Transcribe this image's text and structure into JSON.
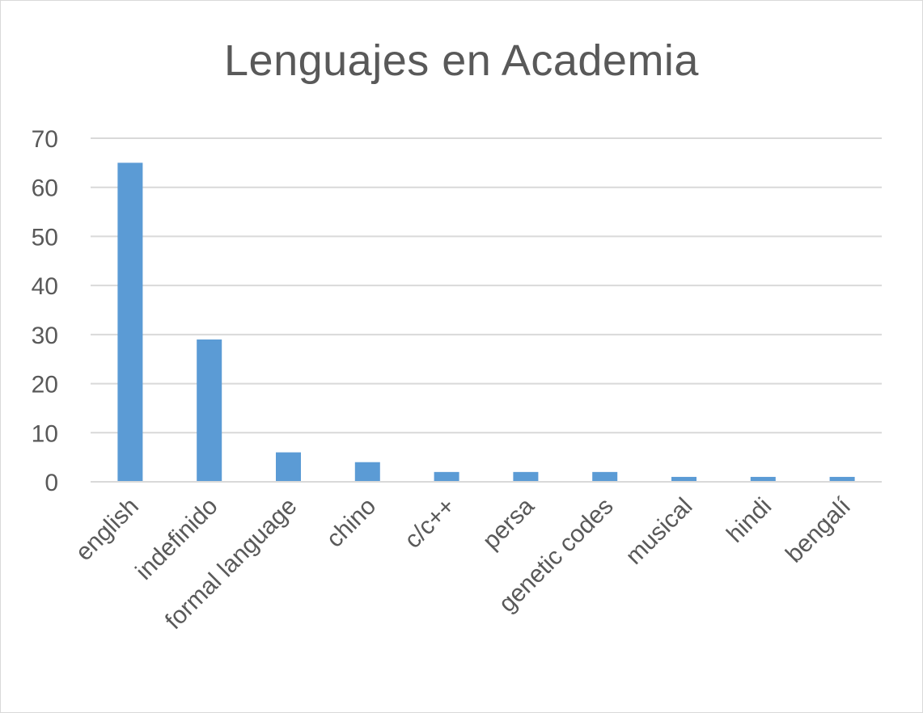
{
  "chart_data": {
    "type": "bar",
    "title": "Lenguajes en Academia",
    "categories": [
      "english",
      "indefinido",
      "formal language",
      "chino",
      "c/c++",
      "persa",
      "genetic codes",
      "musical",
      "hindi",
      "bengalí"
    ],
    "values": [
      65,
      29,
      6,
      4,
      2,
      2,
      2,
      1,
      1,
      1
    ],
    "yticks": [
      0,
      10,
      20,
      30,
      40,
      50,
      60,
      70
    ],
    "ylim": [
      0,
      70
    ],
    "grid": true,
    "legend": "none",
    "bar_color": "#5b9bd5",
    "grid_color": "#d9d9d9",
    "text_color": "#595959"
  }
}
